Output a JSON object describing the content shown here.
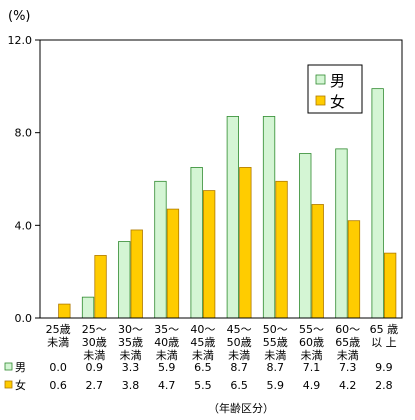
{
  "chart_data": {
    "type": "bar",
    "y_unit": "(%)",
    "ylim": [
      0,
      12
    ],
    "y_ticks": [
      "0.0",
      "4.0",
      "8.0",
      "12.0"
    ],
    "y_tick_values": [
      0,
      4,
      8,
      12
    ],
    "categories": [
      [
        "25歳",
        "未満"
      ],
      [
        "25～",
        "30歳",
        "未満"
      ],
      [
        "30～",
        "35歳",
        "未満"
      ],
      [
        "35～",
        "40歳",
        "未満"
      ],
      [
        "40～",
        "45歳",
        "未満"
      ],
      [
        "45～",
        "50歳",
        "未満"
      ],
      [
        "50～",
        "55歳",
        "未満"
      ],
      [
        "55～",
        "60歳",
        "未満"
      ],
      [
        "60～",
        "65歳",
        "未満"
      ],
      [
        "65 歳",
        "以 上"
      ]
    ],
    "series": [
      {
        "name": "男",
        "color": "#d4f5d4",
        "border": "#2f8a2f",
        "values": [
          0.0,
          0.9,
          3.3,
          5.9,
          6.5,
          8.7,
          8.7,
          7.1,
          7.3,
          9.9
        ],
        "labels": [
          "0.0",
          "0.9",
          "3.3",
          "5.9",
          "6.5",
          "8.7",
          "8.7",
          "7.1",
          "7.3",
          "9.9"
        ]
      },
      {
        "name": "女",
        "color": "#ffcc00",
        "border": "#b07a00",
        "values": [
          0.6,
          2.7,
          3.8,
          4.7,
          5.5,
          6.5,
          5.9,
          4.9,
          4.2,
          2.8
        ],
        "labels": [
          "0.6",
          "2.7",
          "3.8",
          "4.7",
          "5.5",
          "6.5",
          "5.9",
          "4.9",
          "4.2",
          "2.8"
        ]
      }
    ],
    "xlabel": "（年齢区分）",
    "legend_position": "top-right",
    "grid": false
  }
}
